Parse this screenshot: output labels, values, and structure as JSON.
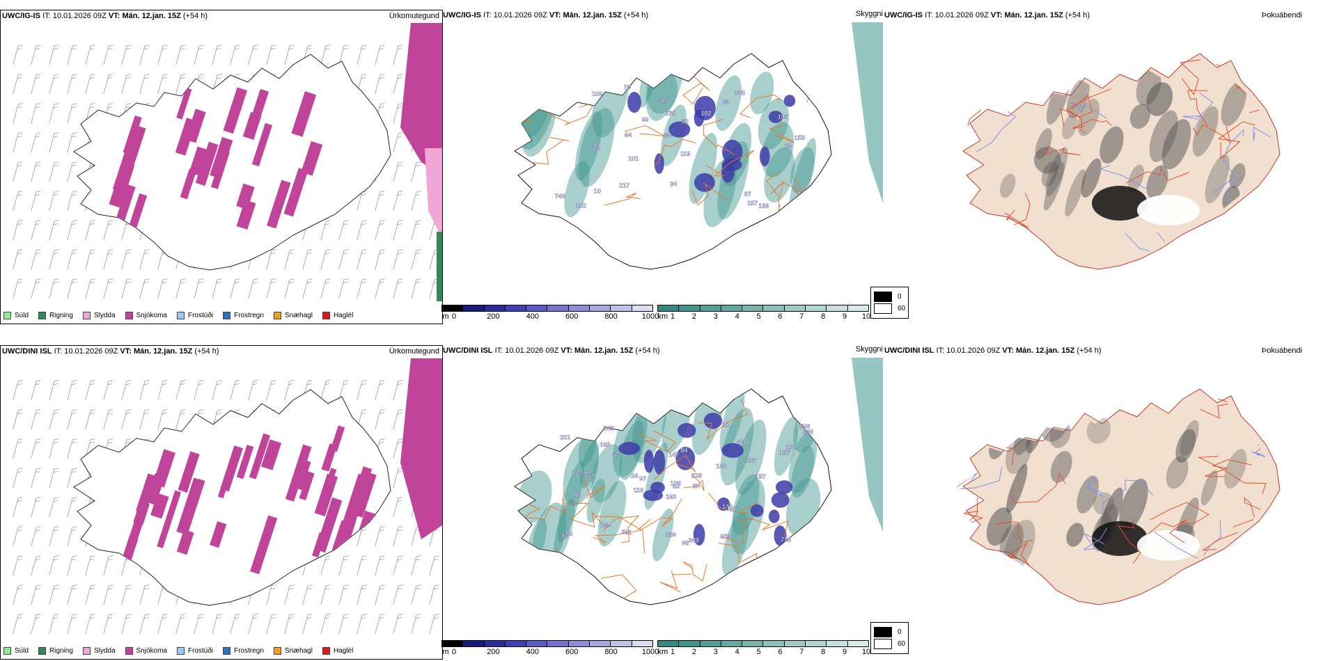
{
  "rows": [
    {
      "model": "UWC/IG-IS",
      "it_label": "IT:",
      "it_value": "10.01.2026 09Z",
      "vt_label": "VT:",
      "vt_value": "Mán. 12.jan. 15Z",
      "lead": "(+54 h)",
      "cloud_labels": [
        "102",
        "34",
        "35",
        "103",
        "235",
        "408",
        "70",
        "37",
        "10",
        "64",
        "985",
        "743",
        "116",
        "89",
        "101",
        "217",
        "153",
        "99",
        "79",
        "105",
        "32",
        "157",
        "156",
        "102",
        "22"
      ]
    },
    {
      "model": "UWC/DINI ISL",
      "it_label": "IT:",
      "it_value": "10.01.2026 09Z",
      "vt_label": "VT:",
      "vt_value": "Mán. 12.jan. 15Z",
      "lead": "(+54 h)",
      "cloud_labels": [
        "147",
        "97",
        "470",
        "391",
        "128",
        "96",
        "139",
        "201",
        "269",
        "218",
        "349",
        "964",
        "21",
        "182",
        "106",
        "715",
        "84",
        "187",
        "39",
        "132",
        "193",
        "395",
        "256",
        "126",
        "98",
        "187",
        "60",
        "63",
        "141",
        "197",
        "146",
        "116",
        "598",
        "83",
        "165",
        "37",
        "24"
      ]
    }
  ],
  "panels": {
    "precip_type": "Úrkomutegund",
    "cloud": "Skyggni",
    "fog": "Þokuábendi"
  },
  "precip_legend": [
    {
      "label": "Súld",
      "color": "#90ee90"
    },
    {
      "label": "Rigning",
      "color": "#2e8b57"
    },
    {
      "label": "Slydda",
      "color": "#f2a6d6"
    },
    {
      "label": "Snjókoma",
      "color": "#c1449b"
    },
    {
      "label": "Frostúði",
      "color": "#9fc8ee"
    },
    {
      "label": "Frostregn",
      "color": "#2f6fbf"
    },
    {
      "label": "Snæhagl",
      "color": "#f0a020"
    },
    {
      "label": "Haglél",
      "color": "#e01818"
    }
  ],
  "cloud_base_bar": {
    "unit": "m",
    "ticks": [
      "0",
      "200",
      "400",
      "600",
      "800",
      "1000"
    ],
    "colors": [
      "#000000",
      "#1a1a7a",
      "#2b2b9e",
      "#4040b8",
      "#5a5ac6",
      "#7474cf",
      "#8e8ed8",
      "#a8a8e0",
      "#c2c2e8",
      "#dcdcf2"
    ]
  },
  "visibility_bar": {
    "unit": "km",
    "ticks": [
      "1",
      "2",
      "3",
      "4",
      "5",
      "6",
      "7",
      "8",
      "9",
      "10"
    ],
    "colors": [
      "#2f8b84",
      "#3f958e",
      "#50a098",
      "#62aaa3",
      "#75b5ae",
      "#88c0ba",
      "#9ccbc6",
      "#b0d6d2",
      "#c4e1de",
      "#d9ecea"
    ]
  },
  "fog_legend": [
    {
      "label": "0",
      "color": "#000000"
    },
    {
      "label": "60",
      "color": "#ffffff"
    }
  ]
}
